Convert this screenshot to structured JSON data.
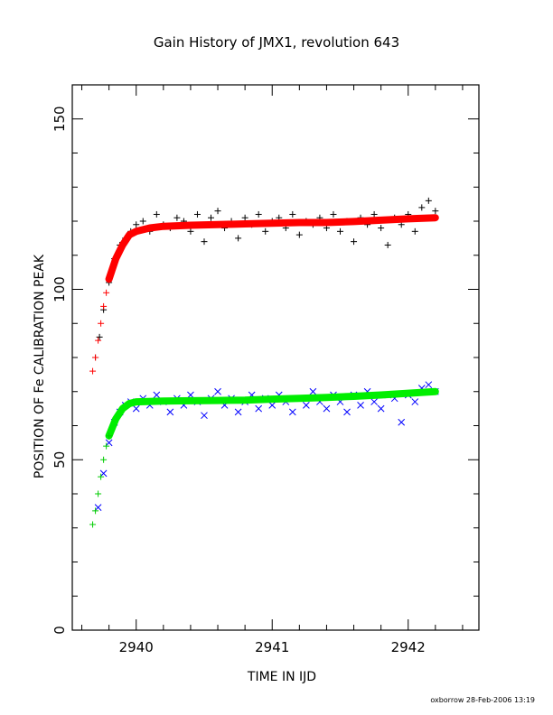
{
  "chart_data": {
    "type": "scatter",
    "title": "Gain History of JMX1, revolution 643",
    "xlabel": "TIME IN IJD",
    "ylabel": "POSITION OF Fe CALIBRATION PEAK",
    "xlim": [
      2939.53,
      2942.52
    ],
    "ylim": [
      0,
      160
    ],
    "x_ticks": [
      2940,
      2941,
      2942
    ],
    "x_tick_labels": [
      "2940",
      "2941",
      "2942"
    ],
    "y_ticks": [
      0,
      50,
      100,
      150
    ],
    "y_tick_labels": [
      "0",
      "50",
      "100",
      "150"
    ],
    "grid": false,
    "legend": "none",
    "footer": "oxborrow 28-Feb-2006 13:19",
    "series": [
      {
        "marker": "plus",
        "color": "#000000",
        "points": [
          [
            2939.7,
            80
          ],
          [
            2939.73,
            86
          ],
          [
            2939.76,
            94
          ],
          [
            2939.8,
            102
          ],
          [
            2939.84,
            109
          ],
          [
            2939.88,
            113
          ],
          [
            2939.92,
            115
          ],
          [
            2939.96,
            117
          ],
          [
            2940.0,
            119
          ],
          [
            2940.05,
            120
          ],
          [
            2940.1,
            117
          ],
          [
            2940.15,
            122
          ],
          [
            2940.2,
            119
          ],
          [
            2940.25,
            118
          ],
          [
            2940.3,
            121
          ],
          [
            2940.35,
            120
          ],
          [
            2940.4,
            117
          ],
          [
            2940.45,
            122
          ],
          [
            2940.5,
            114
          ],
          [
            2940.55,
            121
          ],
          [
            2940.6,
            123
          ],
          [
            2940.65,
            118
          ],
          [
            2940.7,
            120
          ],
          [
            2940.75,
            115
          ],
          [
            2940.8,
            121
          ],
          [
            2940.85,
            119
          ],
          [
            2940.9,
            122
          ],
          [
            2940.95,
            117
          ],
          [
            2941.0,
            120
          ],
          [
            2941.05,
            121
          ],
          [
            2941.1,
            118
          ],
          [
            2941.15,
            122
          ],
          [
            2941.2,
            116
          ],
          [
            2941.25,
            120
          ],
          [
            2941.3,
            119
          ],
          [
            2941.35,
            121
          ],
          [
            2941.4,
            118
          ],
          [
            2941.45,
            122
          ],
          [
            2941.5,
            117
          ],
          [
            2941.55,
            120
          ],
          [
            2941.6,
            114
          ],
          [
            2941.65,
            121
          ],
          [
            2941.7,
            119
          ],
          [
            2941.75,
            122
          ],
          [
            2941.8,
            118
          ],
          [
            2941.85,
            113
          ],
          [
            2941.9,
            121
          ],
          [
            2941.95,
            119
          ],
          [
            2942.0,
            122
          ],
          [
            2942.05,
            117
          ],
          [
            2942.1,
            124
          ],
          [
            2942.15,
            126
          ],
          [
            2942.2,
            123
          ]
        ]
      },
      {
        "marker": "x",
        "color": "#0000ff",
        "points": [
          [
            2939.72,
            36
          ],
          [
            2939.76,
            46
          ],
          [
            2939.8,
            55
          ],
          [
            2939.84,
            61
          ],
          [
            2939.88,
            64
          ],
          [
            2939.92,
            66
          ],
          [
            2939.96,
            67
          ],
          [
            2940.0,
            65
          ],
          [
            2940.05,
            68
          ],
          [
            2940.1,
            66
          ],
          [
            2940.15,
            69
          ],
          [
            2940.2,
            67
          ],
          [
            2940.25,
            64
          ],
          [
            2940.3,
            68
          ],
          [
            2940.35,
            66
          ],
          [
            2940.4,
            69
          ],
          [
            2940.45,
            67
          ],
          [
            2940.5,
            63
          ],
          [
            2940.55,
            68
          ],
          [
            2940.6,
            70
          ],
          [
            2940.65,
            66
          ],
          [
            2940.7,
            68
          ],
          [
            2940.75,
            64
          ],
          [
            2940.8,
            67
          ],
          [
            2940.85,
            69
          ],
          [
            2940.9,
            65
          ],
          [
            2940.95,
            68
          ],
          [
            2941.0,
            66
          ],
          [
            2941.05,
            69
          ],
          [
            2941.1,
            67
          ],
          [
            2941.15,
            64
          ],
          [
            2941.2,
            68
          ],
          [
            2941.25,
            66
          ],
          [
            2941.3,
            70
          ],
          [
            2941.35,
            67
          ],
          [
            2941.4,
            65
          ],
          [
            2941.45,
            69
          ],
          [
            2941.5,
            67
          ],
          [
            2941.55,
            64
          ],
          [
            2941.6,
            69
          ],
          [
            2941.65,
            66
          ],
          [
            2941.7,
            70
          ],
          [
            2941.75,
            67
          ],
          [
            2941.8,
            65
          ],
          [
            2941.85,
            69
          ],
          [
            2941.9,
            68
          ],
          [
            2941.95,
            61
          ],
          [
            2942.0,
            69
          ],
          [
            2942.05,
            67
          ],
          [
            2942.1,
            71
          ],
          [
            2942.15,
            72
          ],
          [
            2942.2,
            70
          ]
        ]
      },
      {
        "marker": "plus",
        "color": "#ff0000",
        "points": [
          [
            2939.68,
            76
          ],
          [
            2939.7,
            80
          ],
          [
            2939.72,
            85
          ],
          [
            2939.74,
            90
          ],
          [
            2939.76,
            95
          ],
          [
            2939.78,
            99
          ],
          [
            2939.8,
            103
          ]
        ]
      },
      {
        "marker": "line",
        "color": "#ff0000",
        "points": [
          [
            2939.8,
            103
          ],
          [
            2939.85,
            109
          ],
          [
            2939.9,
            113
          ],
          [
            2939.95,
            116
          ],
          [
            2940.0,
            117
          ],
          [
            2940.1,
            118
          ],
          [
            2940.2,
            118.5
          ],
          [
            2940.4,
            118.8
          ],
          [
            2940.6,
            119
          ],
          [
            2940.8,
            119.2
          ],
          [
            2941.0,
            119.4
          ],
          [
            2941.2,
            119.6
          ],
          [
            2941.4,
            119.6
          ],
          [
            2941.6,
            119.9
          ],
          [
            2941.8,
            120.3
          ],
          [
            2942.0,
            120.7
          ],
          [
            2942.2,
            121
          ]
        ]
      },
      {
        "marker": "plus",
        "color": "#00cc00",
        "points": [
          [
            2939.68,
            31
          ],
          [
            2939.7,
            35
          ],
          [
            2939.72,
            40
          ],
          [
            2939.74,
            45
          ],
          [
            2939.76,
            50
          ],
          [
            2939.78,
            54
          ],
          [
            2939.8,
            57
          ]
        ]
      },
      {
        "marker": "line",
        "color": "#00ee00",
        "points": [
          [
            2939.8,
            57
          ],
          [
            2939.85,
            62
          ],
          [
            2939.9,
            65
          ],
          [
            2939.95,
            66.5
          ],
          [
            2940.0,
            67
          ],
          [
            2940.2,
            67.2
          ],
          [
            2940.4,
            67.3
          ],
          [
            2940.6,
            67.4
          ],
          [
            2940.8,
            67.5
          ],
          [
            2941.0,
            67.8
          ],
          [
            2941.2,
            68
          ],
          [
            2941.4,
            68.3
          ],
          [
            2941.6,
            68.6
          ],
          [
            2941.8,
            69
          ],
          [
            2942.0,
            69.5
          ],
          [
            2942.2,
            70
          ]
        ]
      }
    ]
  }
}
